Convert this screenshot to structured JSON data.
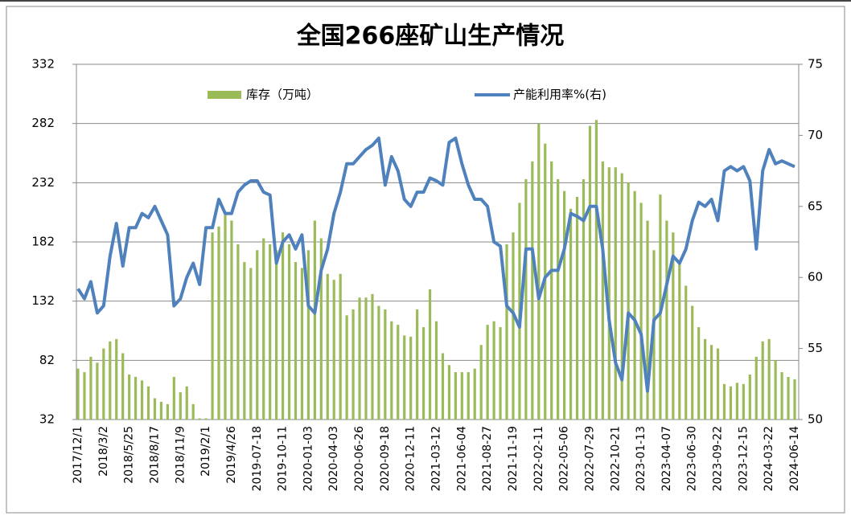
{
  "chart_data": {
    "type": "bar-line",
    "title": "全国266座矿山生产情况",
    "categories": [
      "2017/12/1",
      null,
      null,
      null,
      "2018/3/2",
      null,
      null,
      null,
      "2018/5/25",
      null,
      null,
      null,
      "2018/8/17",
      null,
      null,
      null,
      "2018/11/9",
      null,
      null,
      null,
      "2019/2/1",
      null,
      null,
      null,
      "2019/4/26",
      null,
      null,
      null,
      "2019-07-18",
      null,
      null,
      null,
      "2019-10-11",
      null,
      null,
      null,
      "2020-01-03",
      null,
      null,
      null,
      "2020-04-03",
      null,
      null,
      null,
      "2020-06-26",
      null,
      null,
      null,
      "2020-09-18",
      null,
      null,
      null,
      "2020-12-11",
      null,
      null,
      null,
      "2021-03-12",
      null,
      null,
      null,
      "2021-06-04",
      null,
      null,
      null,
      "2021-08-27",
      null,
      null,
      null,
      "2021-11-19",
      null,
      null,
      null,
      "2022-02-11",
      null,
      null,
      null,
      "2022-05-06",
      null,
      null,
      null,
      "2022-07-29",
      null,
      null,
      null,
      "2022-10-21",
      null,
      null,
      null,
      "2023-01-13",
      null,
      null,
      null,
      "2023-04-07",
      null,
      null,
      null,
      "2023-06-30",
      null,
      null,
      null,
      "2023-09-22",
      null,
      null,
      null,
      "2023-12-15",
      null,
      null,
      null,
      "2024-03-22",
      null,
      null,
      null,
      "2024-06-14"
    ],
    "series": [
      {
        "name": "库存（万吨）",
        "kind": "bar",
        "color": "#9bbb59",
        "values": [
          75,
          72,
          85,
          80,
          92,
          98,
          100,
          88,
          70,
          68,
          65,
          60,
          50,
          47,
          45,
          68,
          55,
          60,
          45,
          33,
          33,
          190,
          195,
          205,
          200,
          180,
          165,
          160,
          175,
          185,
          180,
          175,
          190,
          180,
          165,
          160,
          175,
          200,
          185,
          155,
          150,
          155,
          120,
          125,
          135,
          135,
          138,
          128,
          125,
          115,
          112,
          103,
          102,
          125,
          110,
          142,
          115,
          88,
          78,
          72,
          72,
          72,
          75,
          95,
          112,
          115,
          110,
          180,
          190,
          215,
          235,
          250,
          282,
          265,
          250,
          235,
          225,
          210,
          220,
          235,
          280,
          285,
          250,
          245,
          245,
          240,
          232,
          225,
          215,
          200,
          175,
          222,
          200,
          190,
          165,
          145,
          128,
          110,
          100,
          95,
          92,
          62,
          60,
          63,
          62,
          70,
          85,
          98,
          100,
          82,
          72,
          68,
          66
        ]
      },
      {
        "name": "产能利用率%(右)",
        "kind": "line",
        "axis": "y2",
        "color": "#4f81bd",
        "values": [
          59.2,
          58.5,
          59.7,
          57.5,
          58.0,
          61.5,
          63.8,
          60.8,
          63.5,
          63.5,
          64.5,
          64.2,
          65.0,
          64.0,
          63.0,
          58.0,
          58.5,
          60.0,
          61.0,
          59.5,
          63.5,
          63.5,
          65.5,
          64.5,
          64.5,
          66.0,
          66.5,
          66.8,
          66.8,
          66.0,
          65.8,
          61.0,
          62.5,
          63.0,
          62.0,
          63.0,
          58.0,
          57.5,
          60.5,
          62.0,
          64.5,
          66.0,
          68.0,
          68.0,
          68.5,
          69.0,
          69.3,
          69.8,
          66.5,
          68.5,
          67.5,
          65.5,
          65.0,
          66.0,
          66.0,
          67.0,
          66.8,
          66.5,
          69.5,
          69.8,
          68.0,
          66.5,
          65.5,
          65.5,
          65.0,
          62.5,
          62.2,
          58.0,
          57.5,
          56.5,
          62.0,
          62.0,
          58.5,
          60.0,
          60.5,
          60.5,
          62.0,
          64.5,
          64.3,
          64.0,
          65.0,
          65.0,
          62.0,
          57.0,
          54.0,
          52.8,
          57.5,
          57.0,
          56.0,
          52.0,
          57.0,
          57.5,
          59.5,
          61.5,
          61.0,
          62.0,
          64.0,
          65.3,
          65.0,
          65.5,
          64.0,
          67.5,
          67.8,
          67.5,
          67.8,
          66.8,
          62.0,
          67.5,
          69.0,
          68.0,
          68.2,
          68.0,
          67.8
        ]
      }
    ],
    "ylim": [
      32,
      332
    ],
    "yticks": [
      32,
      82,
      132,
      182,
      232,
      282,
      332
    ],
    "y2lim": [
      50,
      75
    ],
    "y2ticks": [
      50,
      55,
      60,
      65,
      70,
      75
    ],
    "grid": true
  }
}
